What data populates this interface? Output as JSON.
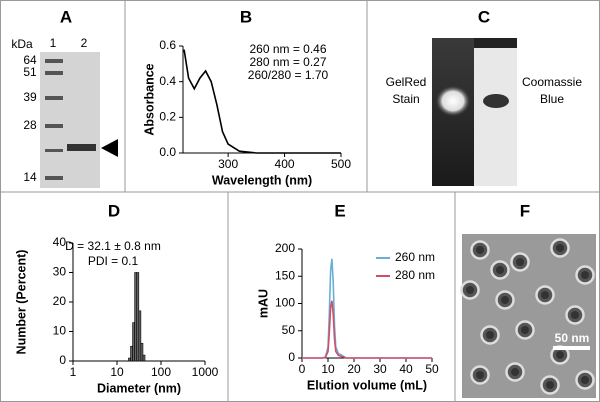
{
  "panels": {
    "A": {
      "label": "A",
      "unit": "kDa",
      "lanes": [
        "1",
        "2"
      ],
      "markers": [
        "64",
        "51",
        "39",
        "28",
        "14"
      ]
    },
    "C": {
      "label": "C",
      "left": [
        "GelRed",
        "Stain"
      ],
      "right": [
        "Coomassie",
        "Blue"
      ]
    },
    "F": {
      "label": "F",
      "scale_bar": "50 nm"
    }
  },
  "chart_data": [
    {
      "type": "line",
      "label": "B",
      "xlabel": "Wavelength (nm)",
      "ylabel": "Absorbance",
      "annotations": [
        "260 nm = 0.46",
        "280 nm = 0.27",
        "260/280 = 1.70"
      ],
      "x": [
        222,
        230,
        240,
        250,
        260,
        270,
        280,
        290,
        300,
        320,
        350,
        400,
        450,
        500
      ],
      "values": [
        0.58,
        0.42,
        0.36,
        0.42,
        0.46,
        0.4,
        0.27,
        0.12,
        0.05,
        0.01,
        0,
        0,
        0,
        0
      ],
      "color": "#000000",
      "xlim": [
        220,
        500
      ],
      "xticks": [
        300,
        400,
        500
      ],
      "ylim": [
        0,
        0.6
      ],
      "yticks": [
        {
          "value": 0,
          "label": "0.0"
        },
        0.2,
        0.4,
        0.6
      ]
    },
    {
      "type": "histogram",
      "label": "D",
      "xlabel": "Diameter (nm)",
      "ylabel": "Number (Percent)",
      "annotations": [
        "D = 32.1 ±  0.8 nm",
        "PDI =  0.1"
      ],
      "bins": [
        18.2,
        20.3,
        22.6,
        25.2,
        28.1,
        31.3,
        34.9,
        38.9,
        43.3
      ],
      "values": [
        1,
        5,
        13,
        30,
        30,
        17,
        6,
        2
      ],
      "color": "#666666",
      "xlog": true,
      "xlim": [
        1,
        1000
      ],
      "xticks": [
        1,
        10,
        100,
        1000
      ],
      "ylim": [
        0,
        40
      ],
      "yticks": [
        0,
        10,
        20,
        30,
        40
      ]
    },
    {
      "type": "line",
      "label": "E",
      "xlabel": "Elution volume (mL)",
      "ylabel": "mAU",
      "legend": "upper right",
      "x": [
        0,
        8,
        9,
        10,
        10.5,
        11,
        11.5,
        12,
        12.5,
        13,
        14,
        15,
        16,
        17,
        20,
        50
      ],
      "series": [
        {
          "name": "260 nm",
          "color": "#6aaed6",
          "values": [
            0,
            0,
            2,
            20,
            80,
            160,
            182,
            140,
            60,
            20,
            8,
            6,
            3,
            0,
            0,
            0
          ]
        },
        {
          "name": "280 nm",
          "color": "#d0506a",
          "values": [
            0,
            0,
            1,
            12,
            46,
            92,
            105,
            81,
            35,
            12,
            5,
            3,
            2,
            0,
            0,
            0
          ]
        }
      ],
      "xlim": [
        0,
        50
      ],
      "xticks": [
        0,
        10,
        20,
        30,
        40,
        50
      ],
      "ylim": [
        0,
        200
      ],
      "yticks": [
        0,
        50,
        100,
        150,
        200
      ]
    }
  ]
}
